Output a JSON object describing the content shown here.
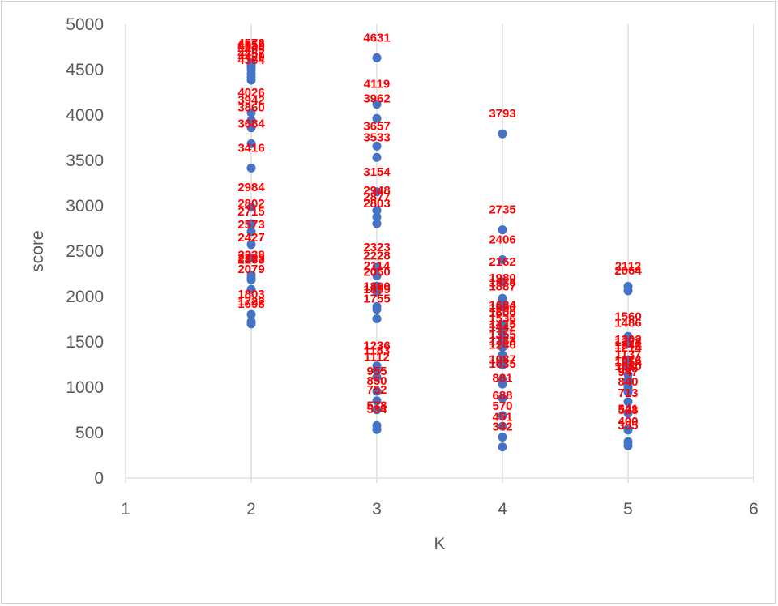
{
  "chart_data": {
    "type": "scatter",
    "title": "",
    "xlabel": "K",
    "ylabel": "score",
    "xlim": [
      1,
      6
    ],
    "ylim": [
      0,
      5000
    ],
    "xticks": [
      1,
      2,
      3,
      4,
      5,
      6
    ],
    "yticks": [
      0,
      500,
      1000,
      1500,
      2000,
      2500,
      3000,
      3500,
      4000,
      4500,
      5000
    ],
    "grid": "vertical",
    "legend": "none",
    "marker_color": "#4472c4",
    "label_color": "#ff0000",
    "series": [
      {
        "points": [
          [
            2,
            4572
          ],
          [
            2,
            4550
          ],
          [
            2,
            4530
          ],
          [
            2,
            4499
          ],
          [
            2,
            4457
          ],
          [
            2,
            4420
          ],
          [
            2,
            4384
          ],
          [
            2,
            4026
          ],
          [
            2,
            3942
          ],
          [
            2,
            3860
          ],
          [
            2,
            3684
          ],
          [
            2,
            3416
          ],
          [
            2,
            2984
          ],
          [
            2,
            2802
          ],
          [
            2,
            2715
          ],
          [
            2,
            2573
          ],
          [
            2,
            2427
          ],
          [
            2,
            2238
          ],
          [
            2,
            2205
          ],
          [
            2,
            2183
          ],
          [
            2,
            2079
          ],
          [
            2,
            1803
          ],
          [
            2,
            1722
          ],
          [
            2,
            1698
          ],
          [
            3,
            4631
          ],
          [
            3,
            4119
          ],
          [
            3,
            3962
          ],
          [
            3,
            3657
          ],
          [
            3,
            3533
          ],
          [
            3,
            3154
          ],
          [
            3,
            2948
          ],
          [
            3,
            2877
          ],
          [
            3,
            2803
          ],
          [
            3,
            2323
          ],
          [
            3,
            2228
          ],
          [
            3,
            2114
          ],
          [
            3,
            2050
          ],
          [
            3,
            1890
          ],
          [
            3,
            1859
          ],
          [
            3,
            1755
          ],
          [
            3,
            1236
          ],
          [
            3,
            1183
          ],
          [
            3,
            1112
          ],
          [
            3,
            955
          ],
          [
            3,
            850
          ],
          [
            3,
            752
          ],
          [
            3,
            578
          ],
          [
            3,
            534
          ],
          [
            4,
            3793
          ],
          [
            4,
            2735
          ],
          [
            4,
            2406
          ],
          [
            4,
            2162
          ],
          [
            4,
            1980
          ],
          [
            4,
            1935
          ],
          [
            4,
            1887
          ],
          [
            4,
            1684
          ],
          [
            4,
            1650
          ],
          [
            4,
            1600
          ],
          [
            4,
            1536
          ],
          [
            4,
            1475
          ],
          [
            4,
            1442
          ],
          [
            4,
            1355
          ],
          [
            4,
            1288
          ],
          [
            4,
            1246
          ],
          [
            4,
            1087
          ],
          [
            4,
            1035
          ],
          [
            4,
            881
          ],
          [
            4,
            688
          ],
          [
            4,
            570
          ],
          [
            4,
            451
          ],
          [
            4,
            342
          ],
          [
            5,
            2112
          ],
          [
            5,
            2064
          ],
          [
            5,
            1560
          ],
          [
            5,
            1486
          ],
          [
            5,
            1302
          ],
          [
            5,
            1278
          ],
          [
            5,
            1244
          ],
          [
            5,
            1214
          ],
          [
            5,
            1137
          ],
          [
            5,
            1076
          ],
          [
            5,
            1054
          ],
          [
            5,
            1010
          ],
          [
            5,
            985
          ],
          [
            5,
            947
          ],
          [
            5,
            840
          ],
          [
            5,
            713
          ],
          [
            5,
            541
          ],
          [
            5,
            528
          ],
          [
            5,
            400
          ],
          [
            5,
            355
          ]
        ]
      }
    ]
  }
}
